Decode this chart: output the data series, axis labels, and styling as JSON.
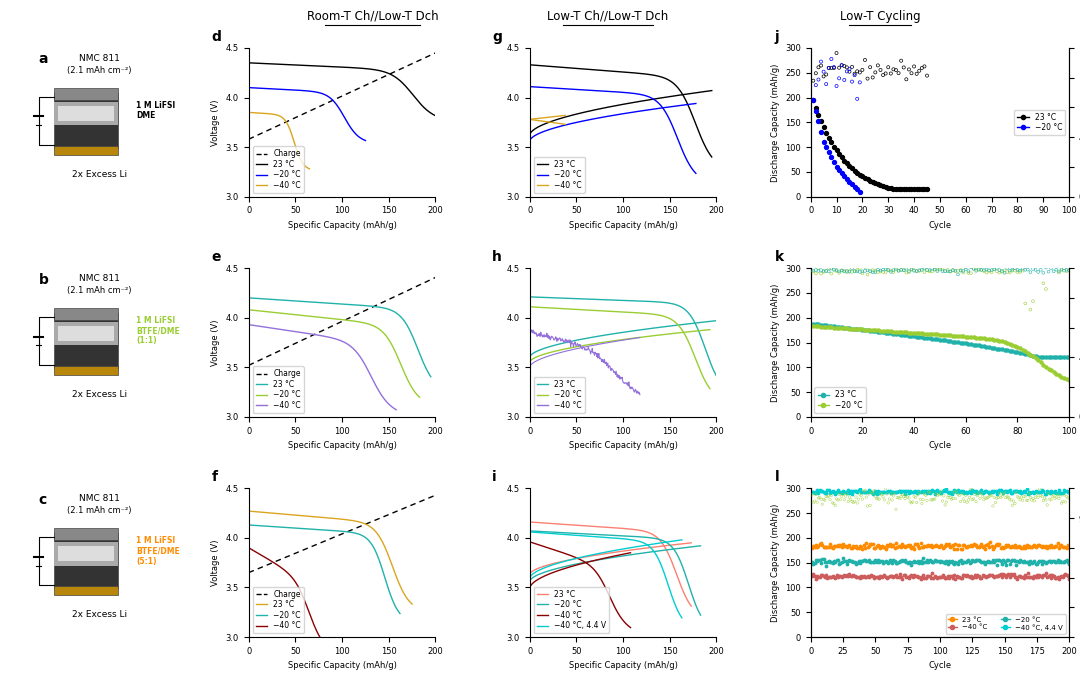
{
  "panel_labels": [
    "a",
    "b",
    "c",
    "d",
    "e",
    "f",
    "g",
    "h",
    "i",
    "j",
    "k",
    "l"
  ],
  "col_titles": [
    "Room-T Ch//Low-T Dch",
    "Low-T Ch//Low-T Dch",
    "Low-T Cycling"
  ],
  "electrolyte_labels": [
    [
      "1 M LiFSI\nDME",
      "black"
    ],
    [
      "1 M LiFSI\nBTFE/DME\n(1:1)",
      "#9ACD32"
    ],
    [
      "1 M LiFSI\nBTFE/DME\n(5:1)",
      "#FF8C00"
    ]
  ],
  "colors_d": {
    "charge": "black",
    "23C": "black",
    "m20C": "blue",
    "m40C": "#DAA520"
  },
  "colors_e": {
    "charge": "black",
    "23C": "#20B2AA",
    "m20C": "#9ACD32",
    "m40C": "#9370DB"
  },
  "colors_f": {
    "charge": "black",
    "23C": "#DAA520",
    "m20C": "#20B2AA",
    "m40C": "#8B0000"
  },
  "colors_g": {
    "23C": "black",
    "m20C": "blue",
    "m40C": "#DAA520"
  },
  "colors_h": {
    "23C": "#20B2AA",
    "m20C": "#9ACD32",
    "m40C": "#9370DB"
  },
  "colors_i": {
    "23C": "#FA8072",
    "m20C": "#20B2AA",
    "m40C": "#8B0000",
    "m40C_44V": "#20B2AA"
  },
  "colors_j": {
    "23C": "black",
    "m20C": "blue"
  },
  "colors_k": {
    "23C": "#20B2AA",
    "m20C": "#9ACD32"
  },
  "colors_l": {
    "23C": "#FF8C00",
    "m20C": "#20B2AA",
    "m40C": "#CD5C5C",
    "m40C_44V": "#20B2AA"
  },
  "background_color": "white"
}
